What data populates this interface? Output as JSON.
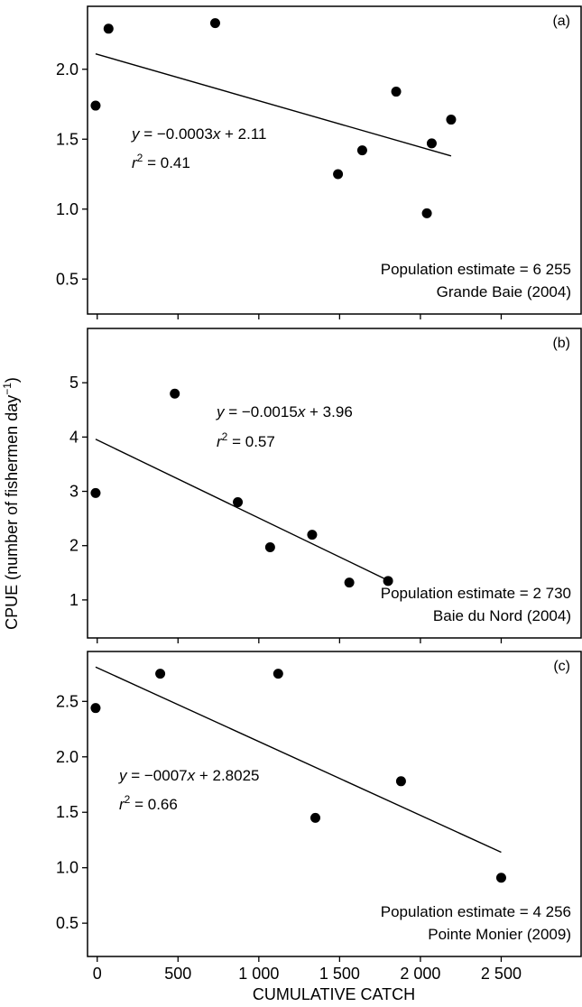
{
  "figure": {
    "ylabel_main": "CPUE (number of fishermen day",
    "ylabel_sup": "−1",
    "ylabel_close": ")",
    "xlabel": "CUMULATIVE CATCH",
    "x_ticks": [
      "0",
      "500",
      "1 000",
      "1 500",
      "2 000",
      "2 500"
    ]
  },
  "chart_data": [
    {
      "type": "scatter",
      "panel_label": "(a)",
      "ylim": [
        0.25,
        2.45
      ],
      "y_ticks": [
        0.5,
        1.0,
        1.5,
        2.0
      ],
      "y_tick_labels": [
        "0.5",
        "1.0",
        "1.5",
        "2.0"
      ],
      "points": [
        [
          -10,
          1.74
        ],
        [
          70,
          2.29
        ],
        [
          730,
          2.33
        ],
        [
          1490,
          1.25
        ],
        [
          1640,
          1.42
        ],
        [
          1850,
          1.84
        ],
        [
          2040,
          0.97
        ],
        [
          2070,
          1.47
        ],
        [
          2190,
          1.64
        ]
      ],
      "fit": {
        "x1": -10,
        "y1": 2.11,
        "x2": 2190,
        "y2": 1.38
      },
      "equation": {
        "y": "y",
        "mid": " = −0.0003",
        "x": "x",
        "rest": " + 2.11",
        "r": "r",
        "r_sup": "2",
        "r_rest": " = 0.41"
      },
      "annotation": [
        "Population estimate = 6 255",
        "Grande Baie (2004)"
      ]
    },
    {
      "type": "scatter",
      "panel_label": "(b)",
      "ylim": [
        0.3,
        6.0
      ],
      "y_ticks": [
        1,
        2,
        3,
        4,
        5
      ],
      "y_tick_labels": [
        "1",
        "2",
        "3",
        "4",
        "5"
      ],
      "points": [
        [
          -10,
          2.97
        ],
        [
          480,
          4.8
        ],
        [
          870,
          2.8
        ],
        [
          1070,
          1.97
        ],
        [
          1330,
          2.2
        ],
        [
          1560,
          1.32
        ],
        [
          1800,
          1.35
        ]
      ],
      "fit": {
        "x1": -10,
        "y1": 3.96,
        "x2": 1800,
        "y2": 1.36
      },
      "equation": {
        "y": "y",
        "mid": " = −0.0015",
        "x": "x",
        "rest": " + 3.96",
        "r": "r",
        "r_sup": "2",
        "r_rest": " = 0.57"
      },
      "annotation": [
        "Population estimate = 2 730",
        "Baie du Nord (2004)"
      ]
    },
    {
      "type": "scatter",
      "panel_label": "(c)",
      "ylim": [
        0.2,
        2.95
      ],
      "y_ticks": [
        0.5,
        1.0,
        1.5,
        2.0,
        2.5
      ],
      "y_tick_labels": [
        "0.5",
        "1.0",
        "1.5",
        "2.0",
        "2.5"
      ],
      "points": [
        [
          -10,
          2.44
        ],
        [
          390,
          2.75
        ],
        [
          1120,
          2.75
        ],
        [
          1350,
          1.45
        ],
        [
          1880,
          1.78
        ],
        [
          2500,
          0.91
        ]
      ],
      "fit": {
        "x1": -10,
        "y1": 2.81,
        "x2": 2500,
        "y2": 1.14
      },
      "equation": {
        "y": "y",
        "mid": " = −0007",
        "x": "x",
        "rest": " + 2.8025",
        "r": "r",
        "r_sup": "2",
        "r_rest": " = 0.66"
      },
      "annotation": [
        "Population estimate = 4 256",
        "Pointe Monier (2009)"
      ]
    }
  ]
}
